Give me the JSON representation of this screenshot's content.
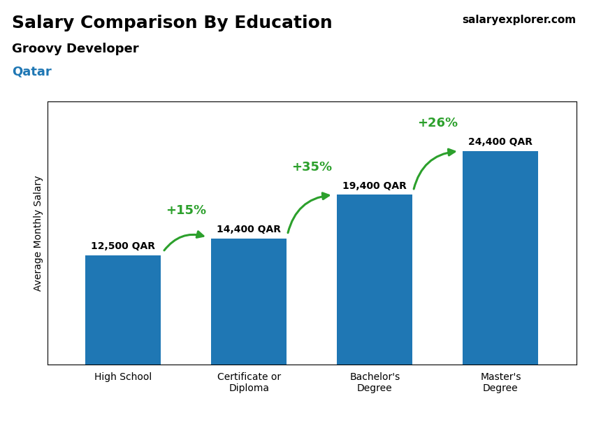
{
  "chart_data": {
    "type": "bar",
    "title": "Salary Comparison By Education",
    "subtitle": "Groovy Developer",
    "ylabel": "Average Monthly Salary",
    "categories": [
      "High School",
      "Certificate or\nDiploma",
      "Bachelor's\nDegree",
      "Master's\nDegree"
    ],
    "values": [
      12500,
      14400,
      19400,
      24400
    ],
    "value_labels": [
      "12,500 QAR",
      "14,400 QAR",
      "19,400 QAR",
      "24,400 QAR"
    ],
    "data_labels": true,
    "ylim": [
      0,
      30000
    ],
    "tick_labels": "x",
    "annotations": [
      {
        "text": "Qatar"
      },
      {
        "text": "salaryexplorer.com"
      },
      {
        "text": "+15%",
        "from": "High School",
        "to": "Certificate or\nDiploma"
      },
      {
        "text": "+35%",
        "from": "Certificate or\nDiploma",
        "to": "Bachelor's\nDegree"
      },
      {
        "text": "+26%",
        "from": "Bachelor's\nDegree",
        "to": "Master's\nDegree"
      }
    ]
  }
}
